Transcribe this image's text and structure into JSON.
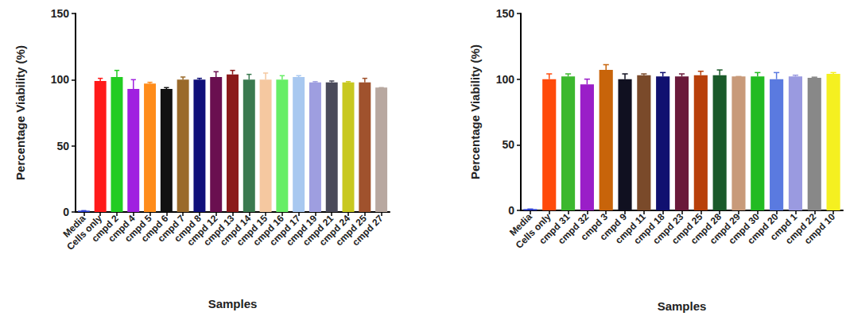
{
  "chart_data": [
    {
      "type": "bar",
      "xlabel": "Samples",
      "ylabel": "Percentage Viability (%)",
      "categories": [
        "Media",
        "Cells only",
        "cmpd 2",
        "cmpd 4",
        "cmpd 5",
        "cmpd 6",
        "cmpd 7",
        "cmpd 8",
        "cmpd 12",
        "cmpd 13",
        "cmpd 14",
        "cmpd 15",
        "cmpd 16",
        "cmpd 17",
        "cmpd 19",
        "cmpd 21",
        "cmpd 24",
        "cmpd 25",
        "cmpd 27"
      ],
      "values": [
        1,
        99,
        102,
        93,
        97,
        93,
        100,
        100,
        102,
        104,
        100,
        100,
        100,
        102,
        98,
        98,
        98,
        98,
        94
      ],
      "errors": [
        0,
        2,
        5,
        7,
        1,
        1,
        2,
        1,
        4,
        3,
        4,
        5,
        3,
        1,
        0.5,
        1,
        0.5,
        3,
        0
      ],
      "colors": [
        "#2a3cd0",
        "#ff1a1a",
        "#22cc22",
        "#a020e0",
        "#ff8c1a",
        "#111111",
        "#9a6a2a",
        "#10107a",
        "#6a0f50",
        "#8b1a1a",
        "#3a7a50",
        "#f5c8a0",
        "#66ee66",
        "#a8c8f0",
        "#9e9ee0",
        "#4a4a5a",
        "#c8c820",
        "#a0522d",
        "#b8a8a0"
      ],
      "ylim": [
        0,
        150
      ],
      "yticks": [
        0,
        50,
        100,
        150
      ],
      "grid": false
    },
    {
      "type": "bar",
      "xlabel": "Samples",
      "ylabel": "Percentage Viability (%)",
      "categories": [
        "Media",
        "Cells only",
        "cmpd 31",
        "cmpd 32",
        "cmpd 3",
        "cmpd 9",
        "cmpd 11",
        "cmpd 18",
        "cmpd 23",
        "cmpd 25",
        "cmpd 28",
        "cmpd 29",
        "cmpd 30",
        "cmpd 20",
        "cmpd 1",
        "cmpd 22",
        "cmpd 10"
      ],
      "values": [
        1,
        100,
        102,
        96,
        107,
        100,
        103,
        102,
        102,
        103,
        103,
        102,
        102,
        100,
        102,
        101,
        104
      ],
      "errors": [
        0,
        4,
        2,
        4,
        4,
        4,
        1,
        3,
        2,
        3,
        4,
        0,
        3,
        5,
        1,
        0.5,
        1
      ],
      "colors": [
        "#2a3cd0",
        "#ff4a0a",
        "#3cb82e",
        "#9a1ec8",
        "#c8640a",
        "#101020",
        "#7a4a2a",
        "#101070",
        "#6a1a3a",
        "#b8400a",
        "#1a5a2a",
        "#c89a7a",
        "#22bb22",
        "#5a7ae0",
        "#9a9ae0",
        "#888888",
        "#f5f020"
      ],
      "ylim": [
        0,
        150
      ],
      "yticks": [
        0,
        50,
        100,
        150
      ],
      "grid": false
    }
  ]
}
